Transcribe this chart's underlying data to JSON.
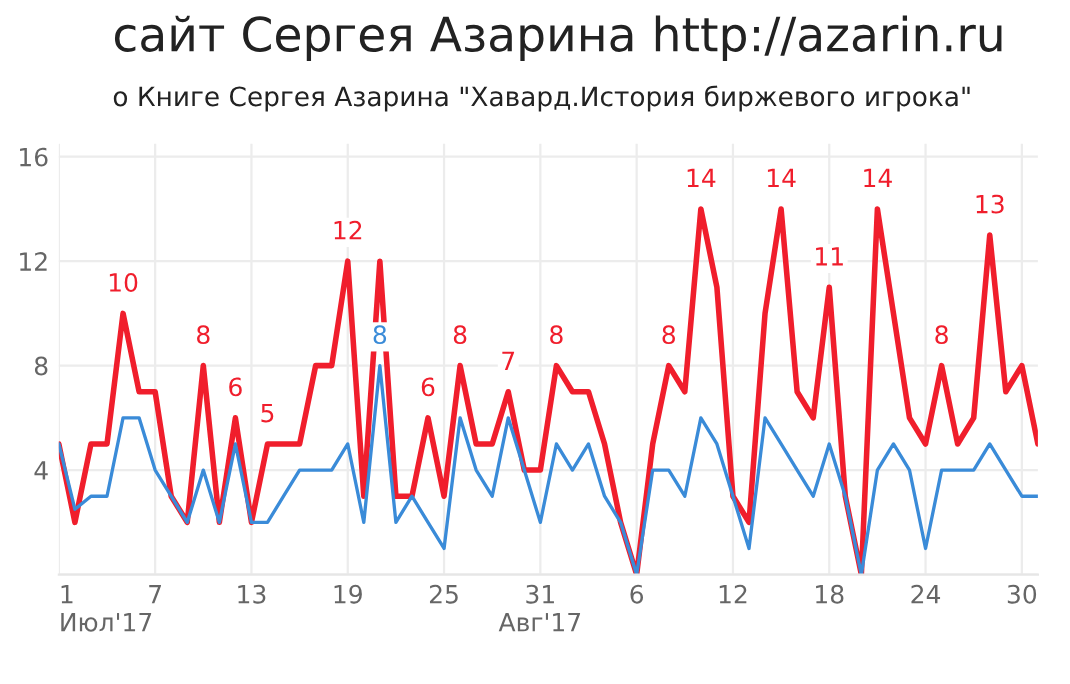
{
  "chart_data": {
    "type": "line",
    "title": "сайт Сергея Азарина http://azarin.ru",
    "subtitle": "о Книге Сергея Азарина \"Хавард.История биржевого игрока\"",
    "x": [
      "2017-07-01",
      "2017-07-02",
      "2017-07-03",
      "2017-07-04",
      "2017-07-05",
      "2017-07-06",
      "2017-07-07",
      "2017-07-08",
      "2017-07-09",
      "2017-07-10",
      "2017-07-11",
      "2017-07-12",
      "2017-07-13",
      "2017-07-14",
      "2017-07-15",
      "2017-07-16",
      "2017-07-17",
      "2017-07-18",
      "2017-07-19",
      "2017-07-20",
      "2017-07-21",
      "2017-07-22",
      "2017-07-23",
      "2017-07-24",
      "2017-07-25",
      "2017-07-26",
      "2017-07-27",
      "2017-07-28",
      "2017-07-29",
      "2017-07-30",
      "2017-07-31",
      "2017-08-01",
      "2017-08-02",
      "2017-08-03",
      "2017-08-04",
      "2017-08-05",
      "2017-08-06",
      "2017-08-07",
      "2017-08-08",
      "2017-08-09",
      "2017-08-10",
      "2017-08-11",
      "2017-08-12",
      "2017-08-13",
      "2017-08-14",
      "2017-08-15",
      "2017-08-16",
      "2017-08-17",
      "2017-08-18",
      "2017-08-19",
      "2017-08-20",
      "2017-08-21",
      "2017-08-22",
      "2017-08-23",
      "2017-08-24",
      "2017-08-25",
      "2017-08-26",
      "2017-08-27",
      "2017-08-28",
      "2017-08-29",
      "2017-08-30",
      "2017-08-31"
    ],
    "series": [
      {
        "color": "#f01e2c",
        "values": [
          5,
          2,
          5,
          5,
          10,
          7,
          7,
          3,
          2,
          8,
          2,
          6,
          2,
          5,
          5,
          5,
          8,
          8,
          12,
          3,
          12,
          3,
          3,
          6,
          3,
          8,
          5,
          5,
          7,
          4,
          4,
          8,
          7,
          7,
          5,
          2,
          0,
          5,
          8,
          7,
          14,
          11,
          3,
          2,
          10,
          14,
          7,
          6,
          11,
          3,
          0,
          14,
          10,
          6,
          5,
          8,
          5,
          6,
          13,
          7,
          8,
          5
        ],
        "value_labels": [
          null,
          null,
          null,
          null,
          "10",
          null,
          null,
          null,
          null,
          "8",
          null,
          "6",
          null,
          "5",
          null,
          null,
          null,
          null,
          "12",
          null,
          null,
          null,
          null,
          "6",
          null,
          "8",
          null,
          null,
          "7",
          null,
          null,
          "8",
          null,
          null,
          null,
          null,
          null,
          null,
          "8",
          null,
          "14",
          null,
          null,
          null,
          null,
          "14",
          null,
          null,
          "11",
          null,
          null,
          "14",
          null,
          null,
          null,
          "8",
          null,
          null,
          "13",
          null,
          null,
          null
        ]
      },
      {
        "color": "#3a8bd8",
        "values": [
          5,
          2.5,
          3,
          3,
          6,
          6,
          4,
          3,
          2,
          4,
          2,
          5,
          2,
          2,
          3,
          4,
          4,
          4,
          5,
          2,
          8,
          2,
          3,
          2,
          1,
          6,
          4,
          3,
          6,
          4,
          2,
          5,
          4,
          5,
          3,
          2,
          0,
          4,
          4,
          3,
          6,
          5,
          3,
          1,
          6,
          5,
          4,
          3,
          5,
          3,
          0,
          4,
          5,
          4,
          1,
          4,
          4,
          4,
          5,
          4,
          3,
          3
        ],
        "value_labels": [
          null,
          null,
          null,
          null,
          null,
          null,
          null,
          null,
          null,
          null,
          null,
          null,
          null,
          null,
          null,
          null,
          null,
          null,
          null,
          null,
          "8",
          null,
          null,
          null,
          null,
          null,
          null,
          null,
          null,
          null,
          null,
          null,
          null,
          null,
          null,
          null,
          null,
          null,
          null,
          null,
          null,
          null,
          null,
          null,
          null,
          null,
          null,
          null,
          null,
          null,
          null,
          null,
          null,
          null,
          null,
          null,
          null,
          null,
          null,
          null,
          null,
          null
        ]
      }
    ],
    "xlim": [
      "2017-07-01",
      "2017-08-31"
    ],
    "xticks": [
      {
        "value": "2017-07-01",
        "label": "1\nИюл'17"
      },
      {
        "value": "2017-07-07",
        "label": "7"
      },
      {
        "value": "2017-07-13",
        "label": "13"
      },
      {
        "value": "2017-07-19",
        "label": "19"
      },
      {
        "value": "2017-07-25",
        "label": "25"
      },
      {
        "value": "2017-07-31",
        "label": "31\nАвг'17"
      },
      {
        "value": "2017-08-06",
        "label": "6"
      },
      {
        "value": "2017-08-12",
        "label": "12"
      },
      {
        "value": "2017-08-18",
        "label": "18"
      },
      {
        "value": "2017-08-24",
        "label": "24"
      },
      {
        "value": "2017-08-30",
        "label": "30"
      }
    ],
    "ylim": [
      0,
      16.5
    ],
    "yticks": [
      {
        "value": 0,
        "label": null
      },
      4,
      8,
      12,
      16
    ],
    "grid": true,
    "legend": false,
    "line_style": "solid"
  }
}
